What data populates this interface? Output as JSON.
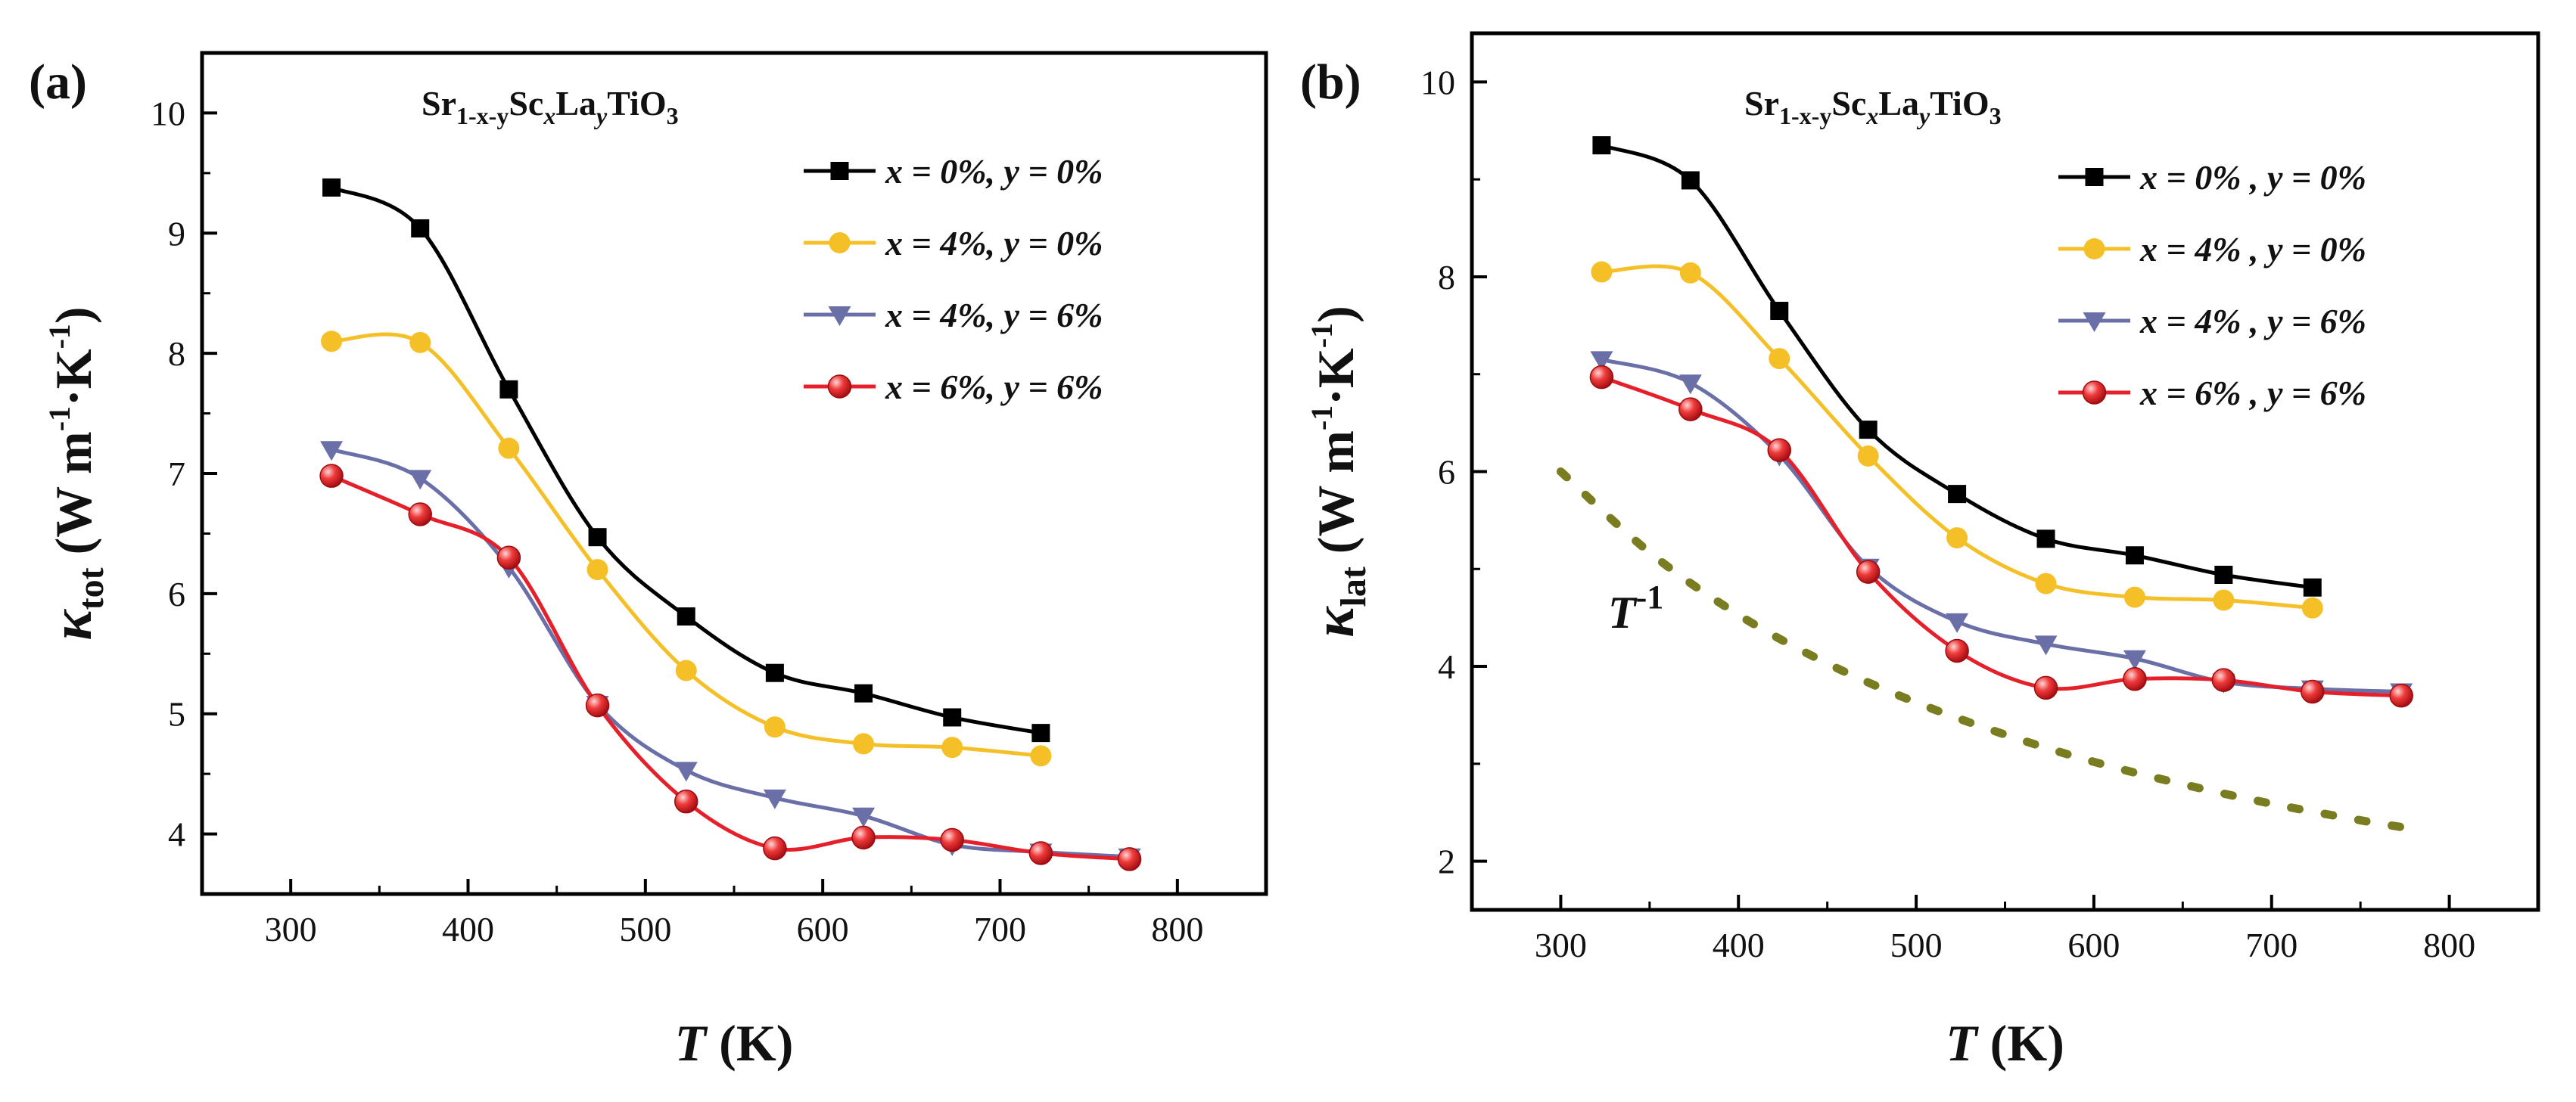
{
  "chart_data": [
    {
      "type": "line",
      "panel_label": "(a)",
      "title_parts": [
        "Sr",
        "1-x-y",
        "Sc",
        "x",
        "La",
        "y",
        "TiO",
        "3"
      ],
      "xlabel_parts": [
        "T",
        " (K)"
      ],
      "ylabel_parts": [
        "κ",
        "tot",
        " (W m",
        "-1",
        "·K",
        "-1",
        ")"
      ],
      "xlim": [
        250,
        850
      ],
      "ylim": [
        3.5,
        10.5
      ],
      "xticks": [
        300,
        400,
        500,
        600,
        700,
        800
      ],
      "yticks": [
        4,
        5,
        6,
        7,
        8,
        9,
        10
      ],
      "legend_position": "top-right",
      "series": [
        {
          "name": "x = 0%, y = 0%",
          "color": "#000000",
          "marker": "square",
          "x": [
            323,
            373,
            423,
            473,
            523,
            573,
            623,
            673,
            723
          ],
          "values": [
            9.38,
            9.04,
            7.7,
            6.47,
            5.81,
            5.34,
            5.17,
            4.97,
            4.84
          ]
        },
        {
          "name": "x = 4%, y = 0%",
          "color": "#f5c027",
          "marker": "circle",
          "x": [
            323,
            373,
            423,
            473,
            523,
            573,
            623,
            673,
            723
          ],
          "values": [
            8.1,
            8.09,
            7.21,
            6.2,
            5.36,
            4.89,
            4.75,
            4.72,
            4.65
          ]
        },
        {
          "name": "x = 4%, y = 6%",
          "color": "#6a6fa8",
          "marker": "triangle-down",
          "x": [
            323,
            373,
            423,
            473,
            523,
            573,
            623,
            673,
            723,
            773
          ],
          "values": [
            7.2,
            6.96,
            6.22,
            5.08,
            4.53,
            4.3,
            4.15,
            3.91,
            3.85,
            3.81
          ]
        },
        {
          "name": "x = 6%, y = 6%",
          "color": "#e5202a",
          "marker": "sphere",
          "x": [
            323,
            373,
            423,
            473,
            523,
            573,
            623,
            673,
            723,
            773
          ],
          "values": [
            6.98,
            6.66,
            6.3,
            5.07,
            4.27,
            3.88,
            3.97,
            3.95,
            3.84,
            3.79
          ]
        }
      ]
    },
    {
      "type": "line",
      "panel_label": "(b)",
      "title_parts": [
        "Sr",
        "1-x-y",
        "Sc",
        "x",
        "La",
        "y",
        "TiO",
        "3"
      ],
      "xlabel_parts": [
        "T",
        " (K)"
      ],
      "ylabel_parts": [
        "κ",
        "lat",
        " (W m",
        "-1",
        "·K",
        "-1",
        ")"
      ],
      "xlim": [
        250,
        850
      ],
      "ylim": [
        1.5,
        10.5
      ],
      "xticks": [
        300,
        400,
        500,
        600,
        700,
        800
      ],
      "yticks": [
        2,
        4,
        6,
        8,
        10
      ],
      "legend_position": "top-right",
      "annotation_parts": [
        "T",
        "-1"
      ],
      "reference_curve": {
        "name": "T^-1",
        "color": "#7a7d1f",
        "style": "dotted",
        "x": [
          300,
          350,
          400,
          450,
          500,
          550,
          600,
          650,
          700,
          750,
          780
        ],
        "values": [
          6.0,
          5.17,
          4.53,
          4.03,
          3.63,
          3.3,
          3.02,
          2.79,
          2.59,
          2.42,
          2.33
        ]
      },
      "series": [
        {
          "name": "x = 0% , y = 0%",
          "color": "#000000",
          "marker": "square",
          "x": [
            323,
            373,
            423,
            473,
            523,
            573,
            623,
            673,
            723
          ],
          "values": [
            9.35,
            8.99,
            7.65,
            6.43,
            5.77,
            5.31,
            5.14,
            4.94,
            4.81
          ]
        },
        {
          "name": "x = 4% , y = 0%",
          "color": "#f5c027",
          "marker": "circle",
          "x": [
            323,
            373,
            423,
            473,
            523,
            573,
            623,
            673,
            723
          ],
          "values": [
            8.05,
            8.04,
            7.16,
            6.16,
            5.32,
            4.85,
            4.71,
            4.68,
            4.6
          ]
        },
        {
          "name": "x = 4% , y = 6%",
          "color": "#6a6fa8",
          "marker": "triangle-down",
          "x": [
            323,
            373,
            423,
            473,
            523,
            573,
            623,
            673,
            723,
            773
          ],
          "values": [
            7.15,
            6.91,
            6.17,
            5.02,
            4.46,
            4.23,
            4.08,
            3.84,
            3.77,
            3.74
          ]
        },
        {
          "name": "x = 6% , y = 6%",
          "color": "#e5202a",
          "marker": "sphere",
          "x": [
            323,
            373,
            423,
            473,
            523,
            573,
            623,
            673,
            723,
            773
          ],
          "values": [
            6.97,
            6.64,
            6.22,
            4.97,
            4.16,
            3.78,
            3.87,
            3.86,
            3.74,
            3.7
          ]
        }
      ]
    }
  ]
}
